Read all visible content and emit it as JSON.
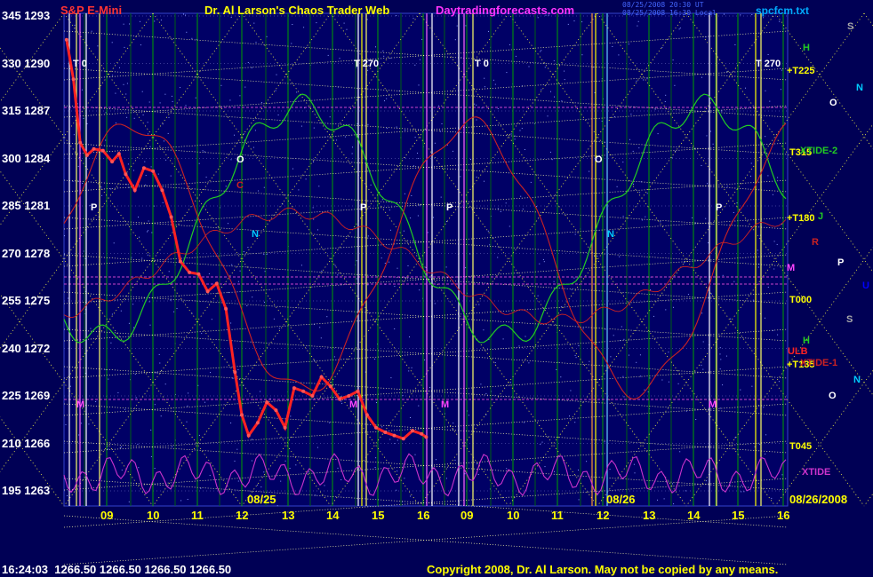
{
  "header": {
    "symbol": "S&P E-Mini",
    "title": "Dr. Al Larson's Chaos Trader Web",
    "site": "Daytradingforecasts.com",
    "timestamps": [
      "08/25/2008 20:30 UT",
      "08/25/2008 16:30 Local"
    ],
    "file": "spcfcm.txt"
  },
  "colors": {
    "background": "#000055",
    "grid_vertical": "#00a000",
    "price": "#ff2222",
    "flux_green": "#22cc22",
    "flux_red": "#cc2222",
    "xtide": "#cc33cc",
    "yellow_dots": "#ffff66",
    "symbol_label": "#ff3333",
    "site": "#ff33ff",
    "title": "#ffff00"
  },
  "status_bar": {
    "time": "16:24:03",
    "open": "1266.50",
    "high": "1266.50",
    "low": "1266.50",
    "close": "1266.50"
  },
  "copyright": "Copyright 2008, Dr. Al Larson. May not be copied by any means.",
  "chart_data": {
    "type": "line",
    "title": "",
    "xlabel": "",
    "ylabel": "",
    "ylim": [
      1263,
      1293
    ],
    "grid": true,
    "y_ticks": [
      {
        "angle": "345",
        "price": "1293",
        "value": 1293
      },
      {
        "angle": "330",
        "price": "1290",
        "value": 1290
      },
      {
        "angle": "315",
        "price": "1287",
        "value": 1287
      },
      {
        "angle": "300",
        "price": "1284",
        "value": 1284
      },
      {
        "angle": "285",
        "price": "1281",
        "value": 1281
      },
      {
        "angle": "270",
        "price": "1278",
        "value": 1278
      },
      {
        "angle": "255",
        "price": "1275",
        "value": 1275
      },
      {
        "angle": "240",
        "price": "1272",
        "value": 1272
      },
      {
        "angle": "225",
        "price": "1269",
        "value": 1269
      },
      {
        "angle": "210",
        "price": "1266",
        "value": 1266
      },
      {
        "angle": "195",
        "price": "1263",
        "value": 1263
      }
    ],
    "x_tick_labels": [
      "09",
      "10",
      "11",
      "12",
      "13",
      "14",
      "15",
      "16",
      "09",
      "10",
      "11",
      "12",
      "13",
      "14",
      "15",
      "16"
    ],
    "date_labels": [
      "08/25",
      "08/26",
      "08/26/2008"
    ],
    "series": [
      {
        "name": "",
        "color": "#ff2222",
        "x_hours": [
          8.2,
          8.35,
          8.5,
          8.65,
          8.8,
          9.0,
          9.2,
          9.35,
          9.5,
          9.7,
          9.9,
          10.1,
          10.3,
          10.5,
          10.7,
          10.9,
          11.1,
          11.3,
          11.5,
          11.7,
          11.9,
          12.05,
          12.2,
          12.4,
          12.6,
          12.8,
          13.0,
          13.2,
          13.4,
          13.6,
          13.8,
          14.0,
          14.2,
          14.4,
          14.6,
          14.8,
          15.0,
          15.2,
          15.4,
          15.6,
          15.8,
          16.0,
          16.1
        ],
        "values": [
          1291.5,
          1289.0,
          1285.0,
          1284.2,
          1284.6,
          1284.5,
          1283.8,
          1284.3,
          1283.0,
          1282.0,
          1283.4,
          1283.2,
          1282.0,
          1280.3,
          1277.5,
          1276.8,
          1276.7,
          1275.6,
          1276.1,
          1274.5,
          1270.5,
          1267.8,
          1266.5,
          1267.3,
          1268.6,
          1268.1,
          1267.0,
          1269.5,
          1269.3,
          1269.0,
          1270.2,
          1269.6,
          1268.8,
          1269.0,
          1269.3,
          1267.8,
          1267.0,
          1266.7,
          1266.5,
          1266.3,
          1266.8,
          1266.6,
          1266.4
        ]
      }
    ],
    "annotations": {
      "right_labels": [
        "+T225",
        "T315",
        "+T180",
        "T000",
        "+T135",
        "T045",
        "T 270",
        "T 270",
        "T 0",
        "T 0"
      ],
      "flux_labels": [
        "XTIDE-2",
        "XTIDE-1",
        "XTIDE",
        "ULB"
      ],
      "planet_letters": [
        "H",
        "N",
        "S",
        "O",
        "J",
        "R",
        "P",
        "U",
        "M",
        "C"
      ]
    }
  }
}
